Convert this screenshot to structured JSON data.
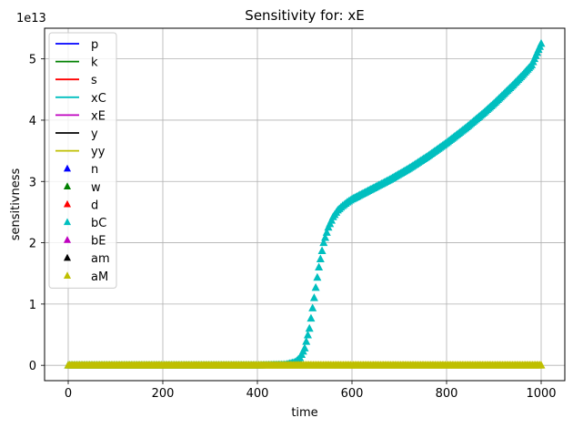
{
  "chart_data": {
    "type": "scatter",
    "title": "Sensitivity for: xE",
    "xlabel": "time",
    "ylabel": "sensitivness",
    "y_scale_label": "1e13",
    "xlim": [
      -50,
      1050
    ],
    "ylim": [
      -0.25,
      5.5
    ],
    "x_ticks": [
      "0",
      "200",
      "400",
      "600",
      "800",
      "1000"
    ],
    "x_tick_values": [
      0,
      200,
      400,
      600,
      800,
      1000
    ],
    "y_ticks": [
      "0",
      "1",
      "2",
      "3",
      "4",
      "5"
    ],
    "y_tick_values": [
      0,
      1,
      2,
      3,
      4,
      5
    ],
    "grid": true,
    "legend_position": "top-left",
    "legend": [
      {
        "label": "p",
        "kind": "line",
        "color": "#0000ff"
      },
      {
        "label": "k",
        "kind": "line",
        "color": "#008000"
      },
      {
        "label": "s",
        "kind": "line",
        "color": "#ff0000"
      },
      {
        "label": "xC",
        "kind": "line",
        "color": "#00bfbf"
      },
      {
        "label": "xE",
        "kind": "line",
        "color": "#bf00bf"
      },
      {
        "label": "y",
        "kind": "line",
        "color": "#000000"
      },
      {
        "label": "yy",
        "kind": "line",
        "color": "#bfbf00"
      },
      {
        "label": "n",
        "kind": "marker",
        "color": "#0000ff"
      },
      {
        "label": "w",
        "kind": "marker",
        "color": "#008000"
      },
      {
        "label": "d",
        "kind": "marker",
        "color": "#ff0000"
      },
      {
        "label": "bC",
        "kind": "marker",
        "color": "#00bfbf"
      },
      {
        "label": "bE",
        "kind": "marker",
        "color": "#bf00bf"
      },
      {
        "label": "am",
        "kind": "marker",
        "color": "#000000"
      },
      {
        "label": "aM",
        "kind": "marker",
        "color": "#bfbf00"
      }
    ],
    "series": [
      {
        "label": "bC",
        "kind": "marker",
        "color": "#00bfbf",
        "x": [
          0,
          100,
          200,
          300,
          400,
          460,
          480,
          490,
          500,
          510,
          520,
          530,
          540,
          550,
          560,
          570,
          580,
          590,
          600,
          620,
          640,
          660,
          680,
          700,
          720,
          740,
          760,
          780,
          800,
          820,
          840,
          860,
          880,
          900,
          920,
          940,
          960,
          980,
          1000
        ],
        "y": [
          0,
          0,
          0,
          0,
          0,
          0.01,
          0.05,
          0.12,
          0.28,
          0.6,
          1.1,
          1.6,
          2.0,
          2.25,
          2.42,
          2.53,
          2.6,
          2.66,
          2.71,
          2.79,
          2.87,
          2.95,
          3.03,
          3.12,
          3.21,
          3.31,
          3.41,
          3.52,
          3.63,
          3.75,
          3.87,
          4.0,
          4.13,
          4.27,
          4.42,
          4.57,
          4.73,
          4.9,
          5.25
        ]
      },
      {
        "label": "aM",
        "kind": "marker",
        "color": "#bfbf00",
        "x": [
          0,
          100,
          200,
          300,
          400,
          500,
          600,
          700,
          800,
          900,
          1000
        ],
        "y": [
          0,
          0,
          0,
          0,
          0,
          0,
          0,
          0,
          0,
          0,
          0
        ]
      }
    ]
  }
}
